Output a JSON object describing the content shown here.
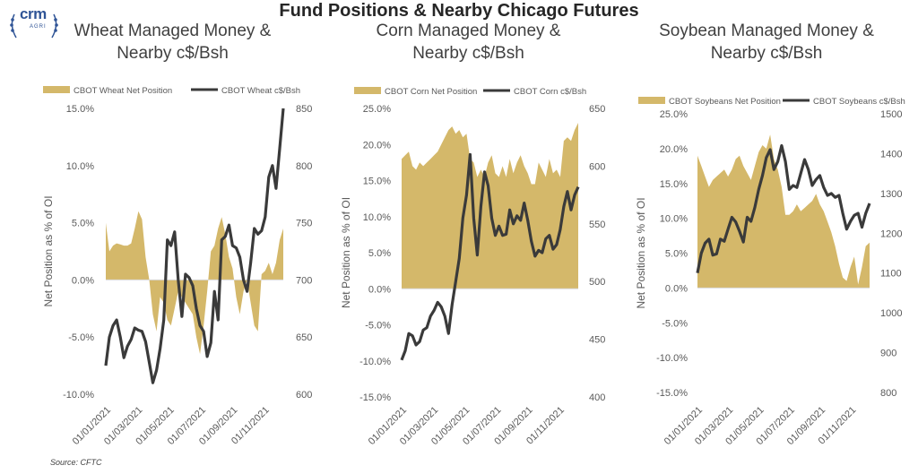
{
  "header": {
    "title": "Fund Positions & Nearby Chicago Futures",
    "logo_text": "crm",
    "logo_sub": "AGRI"
  },
  "source": "Source: CFTC",
  "colors": {
    "area": "#d4b86a",
    "line": "#3a3a3a",
    "axis_text": "#595959",
    "grid": "#d9d9d9"
  },
  "chart_data": [
    {
      "type": "area",
      "title": "Wheat Managed Money & Nearby c$/Bsh",
      "ylabel": "Net Position as % of OI",
      "ylim": [
        -10,
        15
      ],
      "y2lim": [
        600,
        850
      ],
      "yticks": [
        "15.0%",
        "10.0%",
        "5.0%",
        "0.0%",
        "-5.0%",
        "-10.0%"
      ],
      "y2ticks": [
        "850",
        "800",
        "750",
        "700",
        "650",
        "600"
      ],
      "xticks": [
        "01/01/2021",
        "01/03/2021",
        "01/05/2021",
        "01/07/2021",
        "01/09/2021",
        "01/11/2021"
      ],
      "legend": [
        "CBOT Wheat Net Position",
        "CBOT Wheat c$/Bsh"
      ],
      "series": [
        {
          "name": "CBOT Wheat Net Position",
          "kind": "area",
          "axis": "left",
          "values": [
            5.0,
            2.5,
            3.0,
            3.2,
            3.1,
            3.0,
            3.0,
            3.2,
            4.5,
            6.0,
            5.3,
            2.0,
            0.0,
            -3.0,
            -4.5,
            -1.5,
            -2.0,
            -3.5,
            -4.0,
            -2.5,
            -1.0,
            -1.5,
            -2.0,
            -2.5,
            -3.0,
            -5.0,
            -6.5,
            -4.0,
            -1.0,
            2.5,
            3.0,
            4.5,
            5.5,
            4.0,
            2.0,
            1.0,
            -1.5,
            -3.0,
            -1.0,
            0.0,
            -2.0,
            -4.0,
            -4.5,
            0.5,
            0.8,
            1.5,
            0.5,
            1.5,
            3.5,
            4.5
          ]
        },
        {
          "name": "CBOT Wheat c$/Bsh",
          "kind": "line",
          "axis": "right",
          "values": [
            625,
            650,
            660,
            665,
            650,
            632,
            642,
            648,
            658,
            656,
            655,
            646,
            628,
            610,
            621,
            640,
            665,
            735,
            730,
            742,
            700,
            668,
            705,
            702,
            695,
            675,
            660,
            655,
            633,
            645,
            690,
            665,
            735,
            738,
            748,
            730,
            728,
            720,
            700,
            690,
            715,
            745,
            740,
            743,
            755,
            790,
            800,
            780,
            815,
            850
          ]
        }
      ]
    },
    {
      "type": "area",
      "title": "Corn Managed Money & Nearby c$/Bsh",
      "ylabel": "Net Position as % of OI",
      "ylim": [
        -15,
        25
      ],
      "y2lim": [
        400,
        650
      ],
      "yticks": [
        "25.0%",
        "20.0%",
        "15.0%",
        "10.0%",
        "5.0%",
        "0.0%",
        "-5.0%",
        "-10.0%",
        "-15.0%"
      ],
      "y2ticks": [
        "650",
        "600",
        "550",
        "500",
        "450",
        "400"
      ],
      "xticks": [
        "01/01/2021",
        "01/03/2021",
        "01/05/2021",
        "01/07/2021",
        "01/09/2021",
        "01/11/2021"
      ],
      "legend": [
        "CBOT Corn Net Position",
        "CBOT Corn c$/Bsh"
      ],
      "series": [
        {
          "name": "CBOT Corn Net Position",
          "kind": "area",
          "axis": "left",
          "values": [
            18.0,
            18.5,
            19.0,
            17.0,
            16.5,
            17.5,
            17.0,
            17.5,
            18.0,
            18.5,
            19.0,
            20.0,
            21.0,
            22.0,
            22.5,
            21.5,
            22.0,
            21.0,
            21.5,
            18.0,
            17.5,
            15.5,
            16.5,
            15.5,
            17.5,
            18.5,
            16.0,
            15.5,
            17.0,
            15.5,
            18.0,
            16.0,
            17.5,
            18.5,
            17.0,
            16.0,
            14.5,
            14.5,
            17.5,
            16.5,
            15.5,
            18.0,
            16.0,
            16.5,
            15.5,
            20.5,
            21.0,
            20.5,
            22.0,
            23.0
          ]
        },
        {
          "name": "CBOT Corn c$/Bsh",
          "kind": "line",
          "axis": "right",
          "values": [
            432,
            440,
            455,
            453,
            445,
            448,
            458,
            460,
            470,
            475,
            482,
            478,
            470,
            455,
            480,
            500,
            520,
            555,
            575,
            610,
            555,
            523,
            565,
            595,
            583,
            555,
            540,
            548,
            540,
            541,
            562,
            550,
            557,
            553,
            568,
            553,
            535,
            522,
            527,
            525,
            537,
            540,
            528,
            532,
            545,
            565,
            578,
            562,
            575,
            582
          ]
        }
      ]
    },
    {
      "type": "area",
      "title": "Soybean Managed Money & Nearby c$/Bsh",
      "ylabel": "Net Position as % of OI",
      "ylim": [
        -15,
        25
      ],
      "y2lim": [
        800,
        1500
      ],
      "yticks": [
        "25.0%",
        "20.0%",
        "15.0%",
        "10.0%",
        "5.0%",
        "0.0%",
        "-5.0%",
        "-10.0%",
        "-15.0%"
      ],
      "y2ticks": [
        "1500",
        "1400",
        "1300",
        "1200",
        "1100",
        "1000",
        "900",
        "800"
      ],
      "xticks": [
        "01/01/2021",
        "01/03/2021",
        "01/05/2021",
        "01/07/2021",
        "01/09/2021",
        "01/11/2021"
      ],
      "legend": [
        "CBOT Soybeans Net Position",
        "CBOT Soybeans c$/Bsh"
      ],
      "series": [
        {
          "name": "CBOT Soybeans Net Position",
          "kind": "area",
          "axis": "left",
          "values": [
            19.0,
            17.5,
            16.0,
            14.5,
            15.5,
            16.0,
            16.5,
            17.0,
            16.0,
            17.0,
            18.5,
            19.0,
            17.5,
            16.5,
            15.5,
            17.5,
            19.5,
            20.5,
            20.0,
            22.0,
            18.5,
            17.0,
            14.5,
            10.5,
            10.5,
            11.0,
            12.0,
            11.0,
            11.5,
            12.0,
            12.5,
            13.5,
            12.0,
            11.0,
            9.5,
            8.0,
            6.0,
            3.5,
            1.5,
            1.0,
            3.0,
            4.5,
            0.5,
            3.0,
            6.0,
            6.5
          ]
        },
        {
          "name": "CBOT Soybeans c$/Bsh",
          "kind": "line",
          "axis": "right",
          "values": [
            1100,
            1150,
            1175,
            1185,
            1145,
            1148,
            1185,
            1180,
            1210,
            1240,
            1228,
            1205,
            1178,
            1240,
            1230,
            1265,
            1310,
            1345,
            1390,
            1410,
            1360,
            1380,
            1420,
            1380,
            1310,
            1320,
            1315,
            1350,
            1385,
            1360,
            1320,
            1335,
            1345,
            1315,
            1295,
            1300,
            1290,
            1295,
            1250,
            1210,
            1230,
            1245,
            1250,
            1215,
            1250,
            1275
          ]
        }
      ]
    }
  ]
}
